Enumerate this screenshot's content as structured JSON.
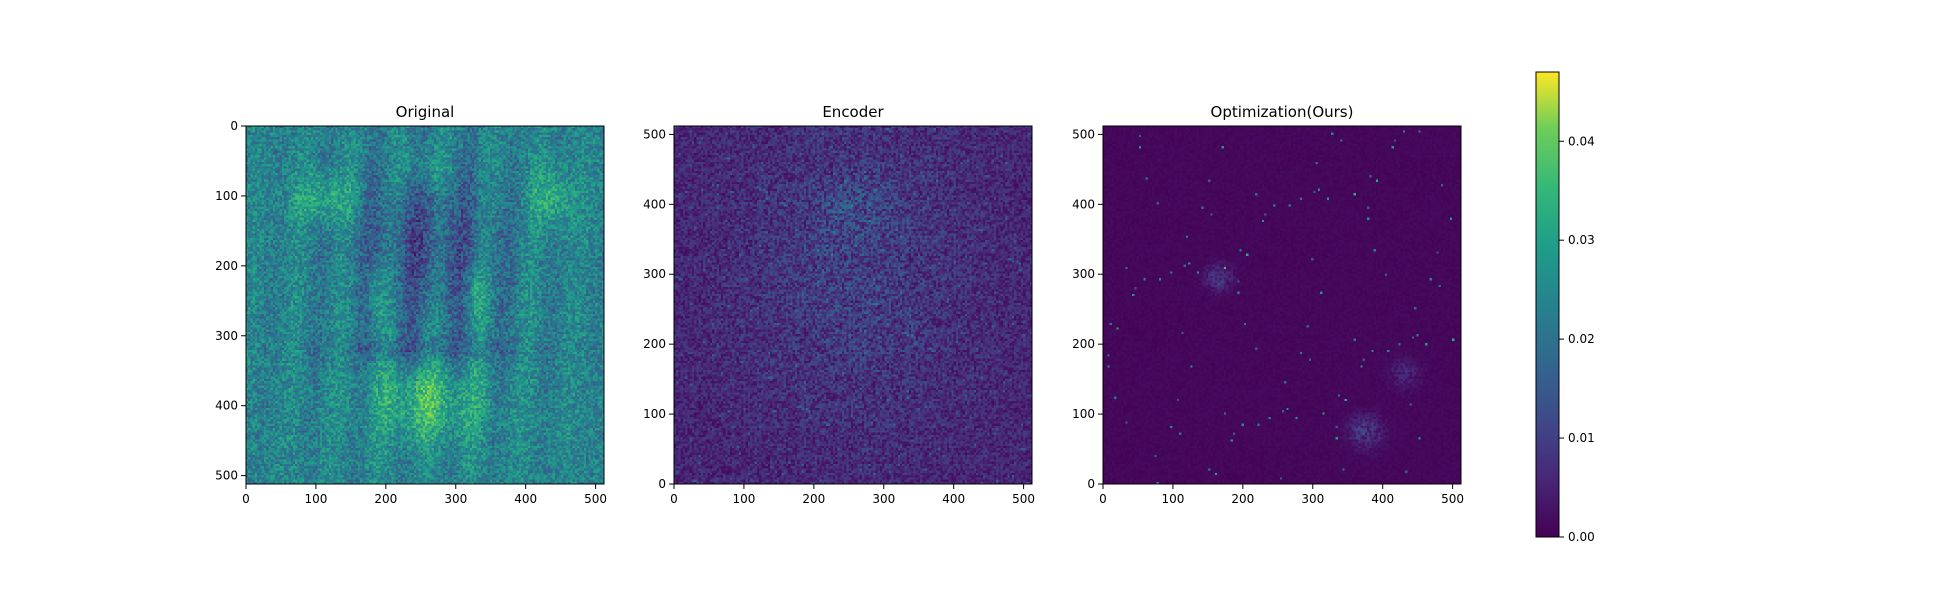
{
  "chart_data": [
    {
      "type": "heatmap",
      "title": "Original",
      "xlim": [
        0,
        512
      ],
      "ylim": [
        512,
        0
      ],
      "y_inverted": true,
      "xticks": [
        0,
        100,
        200,
        300,
        400,
        500
      ],
      "yticks": [
        0,
        100,
        200,
        300,
        400,
        500
      ],
      "colormap": "viridis",
      "colorbar": false,
      "grid": false,
      "content": "image_heatmap"
    },
    {
      "type": "heatmap",
      "title": "Encoder",
      "xlim": [
        0,
        512
      ],
      "ylim": [
        0,
        512
      ],
      "y_inverted": false,
      "xticks": [
        0,
        100,
        200,
        300,
        400,
        500
      ],
      "yticks": [
        0,
        100,
        200,
        300,
        400,
        500
      ],
      "colormap": "viridis",
      "colorbar": false,
      "grid": false,
      "content": "noise_heatmap"
    },
    {
      "type": "heatmap",
      "title": "Optimization(Ours)",
      "xlim": [
        0,
        512
      ],
      "ylim": [
        0,
        512
      ],
      "y_inverted": false,
      "xticks": [
        0,
        100,
        200,
        300,
        400,
        500
      ],
      "yticks": [
        0,
        100,
        200,
        300,
        400,
        500
      ],
      "colormap": "viridis",
      "colorbar": false,
      "grid": false,
      "content": "sparse_heatmap"
    }
  ],
  "colorbar": {
    "range": [
      0.0,
      0.047
    ],
    "ticks": [
      0.0,
      0.01,
      0.02,
      0.03,
      0.04
    ],
    "tick_labels": [
      "0.00",
      "0.01",
      "0.02",
      "0.03",
      "0.04"
    ],
    "colormap": "viridis"
  }
}
